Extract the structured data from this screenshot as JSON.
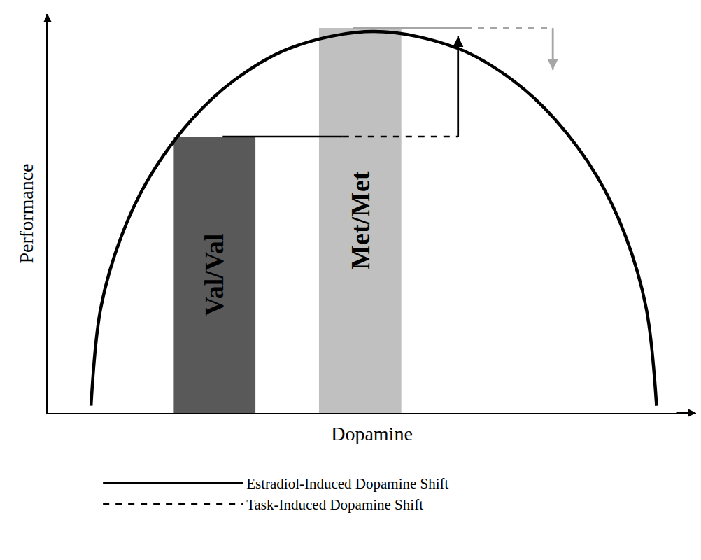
{
  "chart_data": {
    "type": "line",
    "x_label": "Dopamine",
    "y_label": "Performance",
    "xlim": [
      0,
      10
    ],
    "ylim": [
      0,
      10
    ],
    "tick_labels": false,
    "grid": false,
    "legend": "bottom",
    "curve": {
      "x": [
        0.67,
        0.82,
        1.14,
        1.57,
        2.22,
        2.87,
        3.73,
        5.03,
        6.32,
        7.18,
        7.83,
        8.48,
        8.91,
        9.23,
        9.39
      ],
      "values": [
        0.18,
        2.63,
        4.44,
        5.91,
        7.35,
        8.33,
        9.14,
        9.56,
        9.14,
        8.33,
        7.35,
        5.91,
        4.44,
        2.63,
        0.18
      ],
      "color": "#000000",
      "line_style": "solid"
    },
    "bars": {
      "categories": [
        "Val/Val",
        "Met/Met"
      ],
      "x": [
        2.57,
        4.82
      ],
      "values": [
        6.93,
        9.65
      ],
      "colors": [
        "#595959",
        "#c0c0c0"
      ]
    },
    "series": [
      {
        "name": "Estradiol-Induced Dopamine Shift",
        "x": [
          2.7,
          4.55
        ],
        "values": [
          6.93,
          6.93
        ],
        "color": "#000000",
        "line_style": "solid"
      },
      {
        "name": "Task-Induced Dopamine Shift",
        "x": [
          4.55,
          6.33
        ],
        "values": [
          6.93,
          6.93
        ],
        "color": "#000000",
        "line_style": "dashed"
      },
      {
        "x": [
          6.33,
          6.33
        ],
        "values": [
          6.93,
          9.44
        ],
        "color": "#000000",
        "line_style": "solid",
        "marker": "arrow"
      },
      {
        "x": [
          4.71,
          6.44
        ],
        "values": [
          9.65,
          9.65
        ],
        "color": "#a6a6a6",
        "line_style": "solid"
      },
      {
        "x": [
          6.44,
          7.79
        ],
        "values": [
          9.65,
          9.65
        ],
        "color": "#a6a6a6",
        "line_style": "dashed"
      },
      {
        "x": [
          7.79,
          7.79
        ],
        "values": [
          9.65,
          8.6
        ],
        "color": "#a6a6a6",
        "line_style": "solid",
        "marker": "arrow"
      }
    ]
  }
}
